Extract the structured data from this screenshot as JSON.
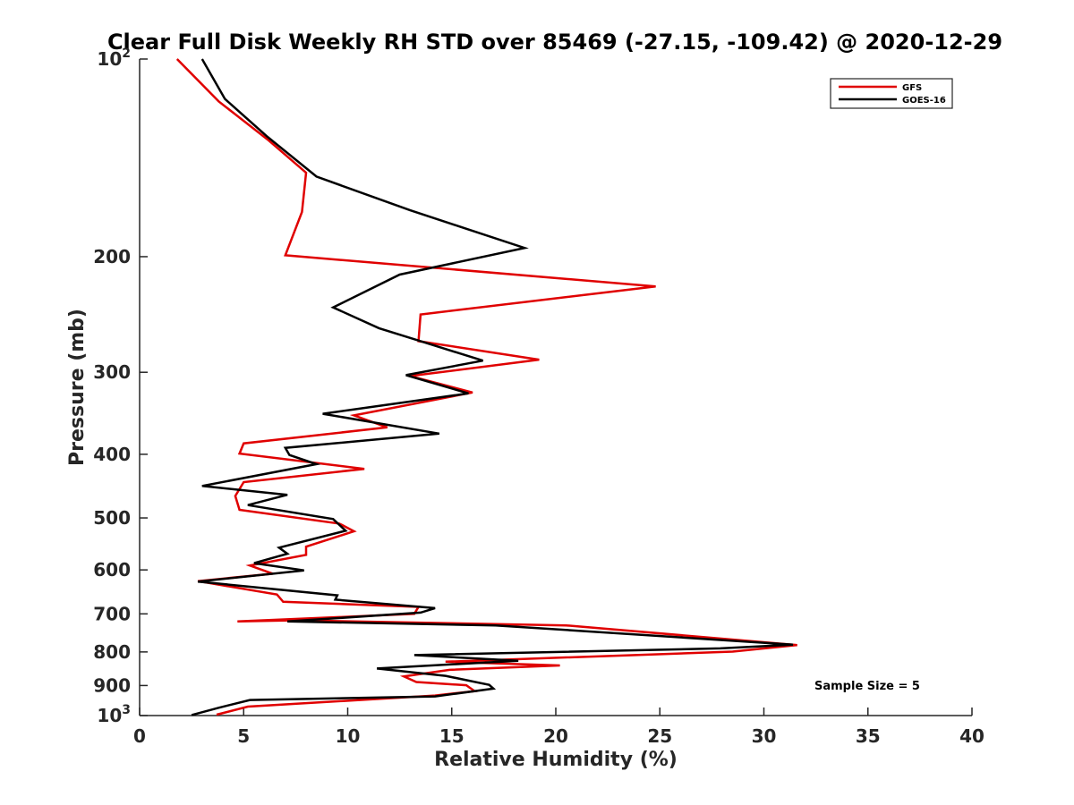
{
  "chart_data": {
    "type": "line",
    "title": "Clear Full Disk Weekly RH STD over 85469 (-27.15, -109.42) @ 2020-12-29",
    "xlabel": "Relative Humidity (%)",
    "ylabel": "Pressure (mb)",
    "xlim": [
      0,
      40
    ],
    "ylim": [
      100,
      1000
    ],
    "y_scale": "log",
    "y_reversed": true,
    "x_ticks": [
      "0",
      "5",
      "10",
      "15",
      "20",
      "25",
      "30",
      "35",
      "40"
    ],
    "y_ticks": [
      {
        "value": 100,
        "base": "10",
        "exp": "2"
      },
      {
        "value": 200,
        "label": "200"
      },
      {
        "value": 300,
        "label": "300"
      },
      {
        "value": 400,
        "label": "400"
      },
      {
        "value": 500,
        "label": "500"
      },
      {
        "value": 600,
        "label": "600"
      },
      {
        "value": 700,
        "label": "700"
      },
      {
        "value": 800,
        "label": "800"
      },
      {
        "value": 900,
        "label": "900"
      },
      {
        "value": 1000,
        "base": "10",
        "exp": "3"
      }
    ],
    "legend_position": "top-right",
    "grid": false,
    "series": [
      {
        "name": "GFS",
        "color": "#e00000",
        "points": [
          [
            1.8,
            100
          ],
          [
            3.8,
            116
          ],
          [
            6.2,
            133
          ],
          [
            8.0,
            149
          ],
          [
            7.8,
            171
          ],
          [
            7.0,
            199
          ],
          [
            24.8,
            222
          ],
          [
            13.5,
            245
          ],
          [
            13.4,
            269
          ],
          [
            19.2,
            287
          ],
          [
            13.0,
            304
          ],
          [
            16.0,
            322
          ],
          [
            10.3,
            349
          ],
          [
            11.9,
            364
          ],
          [
            5.0,
            385
          ],
          [
            4.8,
            399
          ],
          [
            10.8,
            421
          ],
          [
            5.0,
            441
          ],
          [
            4.6,
            463
          ],
          [
            4.8,
            486
          ],
          [
            9.6,
            510
          ],
          [
            10.3,
            524
          ],
          [
            8.0,
            553
          ],
          [
            8.0,
            569
          ],
          [
            5.3,
            591
          ],
          [
            6.4,
            608
          ],
          [
            2.8,
            624
          ],
          [
            6.6,
            654
          ],
          [
            6.9,
            671
          ],
          [
            13.4,
            683
          ],
          [
            13.2,
            700
          ],
          [
            4.7,
            719
          ],
          [
            7.5,
            716
          ],
          [
            20.5,
            729
          ],
          [
            31.6,
            781
          ],
          [
            28.5,
            799
          ],
          [
            14.7,
            828
          ],
          [
            20.2,
            839
          ],
          [
            14.9,
            852
          ],
          [
            12.7,
            872
          ],
          [
            13.3,
            889
          ],
          [
            15.7,
            899
          ],
          [
            16.1,
            918
          ],
          [
            14.2,
            932
          ],
          [
            5.2,
            969
          ],
          [
            3.7,
            997
          ]
        ]
      },
      {
        "name": "GOES-16",
        "color": "#000000",
        "points": [
          [
            3.0,
            100
          ],
          [
            4.1,
            115
          ],
          [
            6.1,
            131
          ],
          [
            8.5,
            151
          ],
          [
            13.0,
            170
          ],
          [
            18.5,
            194
          ],
          [
            12.5,
            213
          ],
          [
            9.3,
            239
          ],
          [
            11.5,
            257
          ],
          [
            16.5,
            288
          ],
          [
            12.8,
            303
          ],
          [
            15.8,
            323
          ],
          [
            8.8,
            347
          ],
          [
            14.4,
            372
          ],
          [
            7.0,
            391
          ],
          [
            7.2,
            401
          ],
          [
            8.5,
            414
          ],
          [
            3.0,
            447
          ],
          [
            7.1,
            461
          ],
          [
            5.2,
            478
          ],
          [
            9.3,
            502
          ],
          [
            9.9,
            523
          ],
          [
            6.7,
            555
          ],
          [
            7.1,
            567
          ],
          [
            5.5,
            586
          ],
          [
            7.9,
            601
          ],
          [
            2.8,
            625
          ],
          [
            9.5,
            656
          ],
          [
            9.4,
            666
          ],
          [
            14.2,
            686
          ],
          [
            13.5,
            697
          ],
          [
            7.1,
            719
          ],
          [
            17.1,
            729
          ],
          [
            31.4,
            780
          ],
          [
            27.9,
            790
          ],
          [
            13.2,
            809
          ],
          [
            18.2,
            825
          ],
          [
            11.4,
            848
          ],
          [
            14.7,
            870
          ],
          [
            16.8,
            898
          ],
          [
            17.0,
            910
          ],
          [
            14.2,
            935
          ],
          [
            5.3,
            947
          ],
          [
            3.8,
            973
          ],
          [
            2.5,
            998
          ]
        ]
      }
    ]
  },
  "legend": {
    "items": [
      {
        "label": "GFS",
        "color": "#e00000"
      },
      {
        "label": "GOES-16",
        "color": "#000000"
      }
    ]
  },
  "annotation": {
    "sample_size": "Sample Size = 5"
  }
}
